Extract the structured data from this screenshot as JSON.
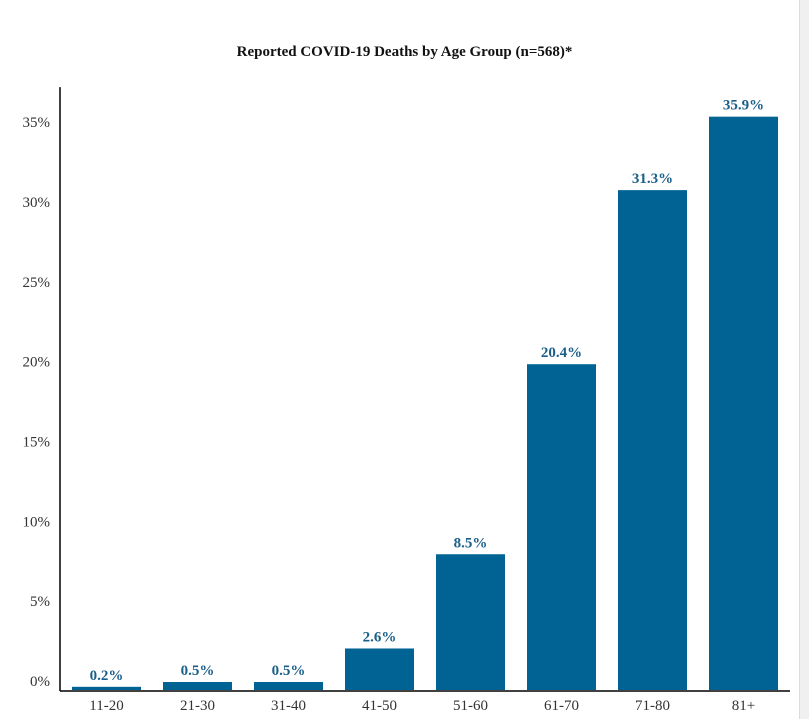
{
  "chart_data": {
    "type": "bar",
    "title": "Reported COVID-19 Deaths by Age Group (n=568)*",
    "xlabel": "",
    "ylabel": "",
    "categories": [
      "11-20",
      "21-30",
      "31-40",
      "41-50",
      "51-60",
      "61-70",
      "71-80",
      "81+"
    ],
    "values": [
      0.2,
      0.5,
      0.5,
      2.6,
      8.5,
      20.4,
      31.3,
      35.9
    ],
    "data_labels": [
      "0.2%",
      "0.5%",
      "0.5%",
      "2.6%",
      "8.5%",
      "20.4%",
      "31.3%",
      "35.9%"
    ],
    "ylim": [
      0,
      38
    ],
    "y_ticks": [
      0,
      5,
      10,
      15,
      20,
      25,
      30,
      35
    ],
    "y_tick_labels": [
      "0%",
      "5%",
      "10%",
      "15%",
      "20%",
      "25%",
      "30%",
      "35%"
    ],
    "grid": false,
    "legend": "none",
    "colors": {
      "bar": "#006394",
      "data_label": "#1a5f8a",
      "axis": "#000000",
      "tick_label": "#333333"
    }
  }
}
